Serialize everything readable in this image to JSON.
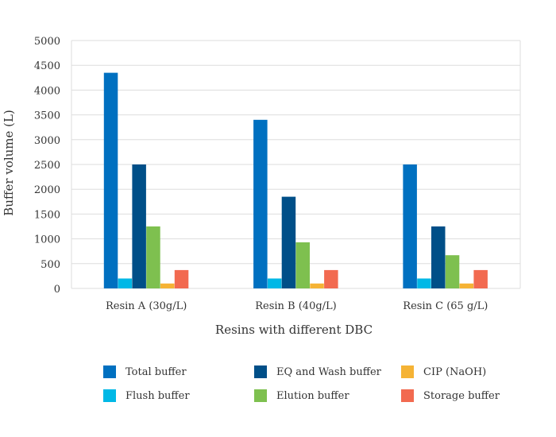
{
  "chart_data": {
    "type": "bar",
    "title": "",
    "xlabel": "Resins with different DBC",
    "ylabel": "Buffer volume (L)",
    "ylim": [
      0,
      5000
    ],
    "yticks": [
      0,
      500,
      1000,
      1500,
      2000,
      2500,
      3000,
      3500,
      4000,
      4500,
      5000
    ],
    "grid": true,
    "legend_position": "bottom",
    "categories": [
      "Resin A (30g/L)",
      "Resin B (40g/L)",
      "Resin C (65 g/L)"
    ],
    "series": [
      {
        "name": "Total buffer",
        "color": "#0070c0",
        "values": [
          4350,
          3400,
          2500
        ]
      },
      {
        "name": "Flush buffer",
        "color": "#00b8e6",
        "values": [
          200,
          200,
          200
        ]
      },
      {
        "name": "EQ and Wash buffer",
        "color": "#004f88",
        "values": [
          2500,
          1850,
          1250
        ]
      },
      {
        "name": "Elution buffer",
        "color": "#7ec04f",
        "values": [
          1250,
          930,
          670
        ]
      },
      {
        "name": "CIP (NaOH)",
        "color": "#f5b335",
        "values": [
          100,
          100,
          100
        ]
      },
      {
        "name": "Storage buffer",
        "color": "#f26a50",
        "values": [
          370,
          370,
          370
        ]
      }
    ],
    "bar_order": [
      "Total buffer",
      "Flush buffer",
      "EQ and Wash buffer",
      "Elution buffer",
      "CIP (NaOH)",
      "Storage buffer"
    ],
    "legend_order": [
      "Total buffer",
      "EQ and Wash buffer",
      "CIP (NaOH)",
      "Flush buffer",
      "Elution buffer",
      "Storage buffer"
    ]
  }
}
